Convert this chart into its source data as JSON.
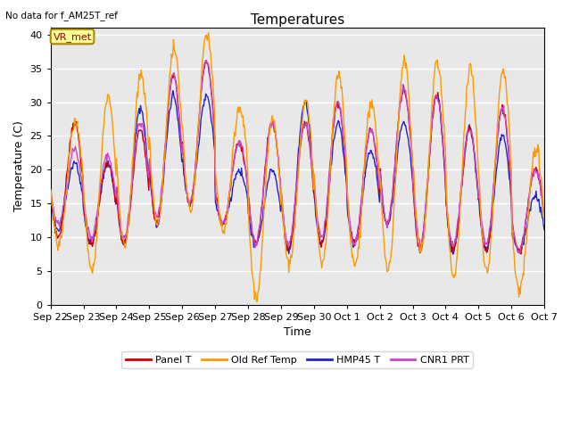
{
  "title": "Temperatures",
  "note": "No data for f_AM25T_ref",
  "xlabel": "Time",
  "ylabel": "Temperature (C)",
  "ylim": [
    0,
    41
  ],
  "background_color": "#e8e8e8",
  "grid_color": "white",
  "legend_labels": [
    "Panel T",
    "Old Ref Temp",
    "HMP45 T",
    "CNR1 PRT"
  ],
  "legend_colors": [
    "#cc0000",
    "#ff9900",
    "#2222cc",
    "#cc44cc"
  ],
  "vr_met_box_color": "#ffff99",
  "vr_met_box_edge": "#aa8800",
  "annotation": "VR_met",
  "tick_labels": [
    "Sep 22",
    "Sep 23",
    "Sep 24",
    "Sep 25",
    "Sep 26",
    "Sep 27",
    "Sep 28",
    "Sep 29",
    "Sep 30",
    "Oct 1",
    "Oct 2",
    "Oct 3",
    "Oct 4",
    "Oct 5",
    "Oct 6",
    "Oct 7"
  ],
  "n_days": 15,
  "panel_peaks": [
    27,
    21,
    26,
    34,
    36,
    24,
    27,
    27,
    30,
    26,
    32,
    31,
    26,
    29,
    20
  ],
  "panel_mins": [
    10,
    9,
    9,
    12,
    15,
    12,
    9,
    8,
    9,
    9,
    12,
    8,
    8,
    8,
    8
  ],
  "orange_peaks": [
    27,
    31,
    34,
    38,
    40,
    29,
    28,
    30,
    34,
    30,
    36,
    36,
    35,
    35,
    23
  ],
  "orange_mins": [
    9,
    5,
    9,
    12,
    14,
    11,
    1,
    6,
    6,
    6,
    5,
    8,
    4,
    5,
    2
  ],
  "hmp45_peaks": [
    21,
    21,
    29,
    31,
    31,
    20,
    20,
    30,
    27,
    23,
    27,
    31,
    26,
    25,
    16
  ],
  "hmp45_mins": [
    11,
    9,
    9,
    12,
    15,
    12,
    9,
    8,
    9,
    9,
    12,
    9,
    8,
    8,
    8
  ],
  "cnr1_peaks": [
    23,
    22,
    27,
    34,
    36,
    24,
    27,
    27,
    30,
    26,
    32,
    31,
    26,
    29,
    20
  ],
  "cnr1_mins": [
    12,
    10,
    10,
    13,
    15,
    12,
    9,
    9,
    10,
    9,
    12,
    9,
    9,
    9,
    8
  ],
  "figsize": [
    6.4,
    4.8
  ],
  "dpi": 100
}
